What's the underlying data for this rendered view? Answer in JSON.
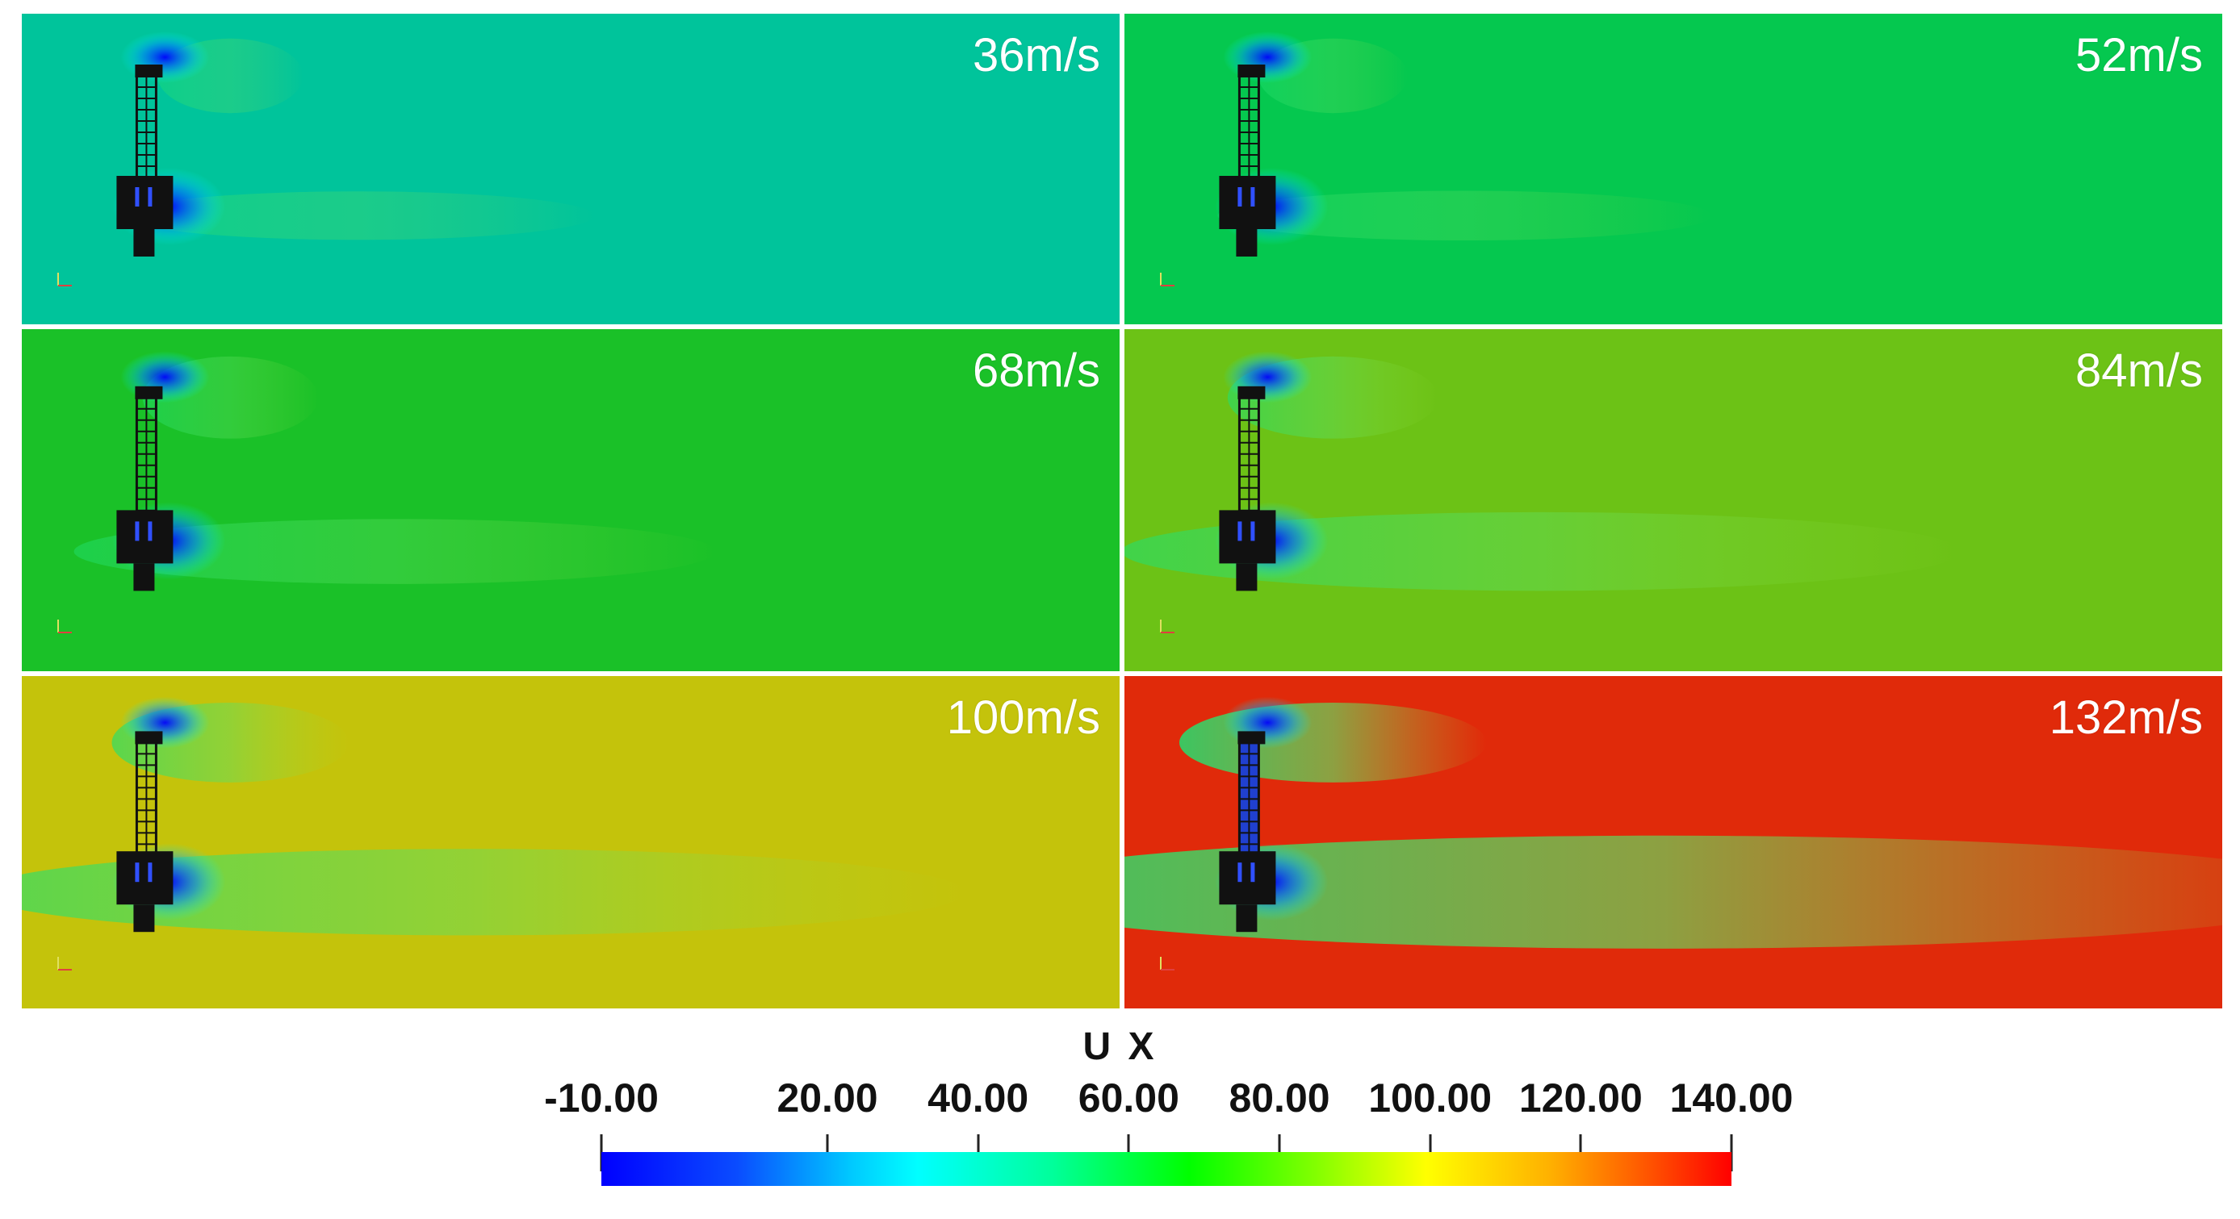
{
  "panels": [
    {
      "label": "36m/s",
      "bg": "#00c49b",
      "wake_strength": 0.08
    },
    {
      "label": "52m/s",
      "bg": "#05c84f",
      "wake_strength": 0.1
    },
    {
      "label": "68m/s",
      "bg": "#1ac128",
      "wake_strength": 0.25
    },
    {
      "label": "84m/s",
      "bg": "#6cc216",
      "wake_strength": 0.45
    },
    {
      "label": "100m/s",
      "bg": "#c4c30b",
      "wake_strength": 0.6
    },
    {
      "label": "132m/s",
      "bg": "#e02a0a",
      "wake_strength": 1.0
    }
  ],
  "legend": {
    "title": "U X",
    "ticks": [
      "-10.00",
      "20.00",
      "40.00",
      "60.00",
      "80.00",
      "100.00",
      "120.00",
      "140.00"
    ],
    "tick_values": [
      -10,
      20,
      40,
      60,
      80,
      100,
      120,
      140
    ],
    "range": [
      -10,
      140
    ]
  }
}
